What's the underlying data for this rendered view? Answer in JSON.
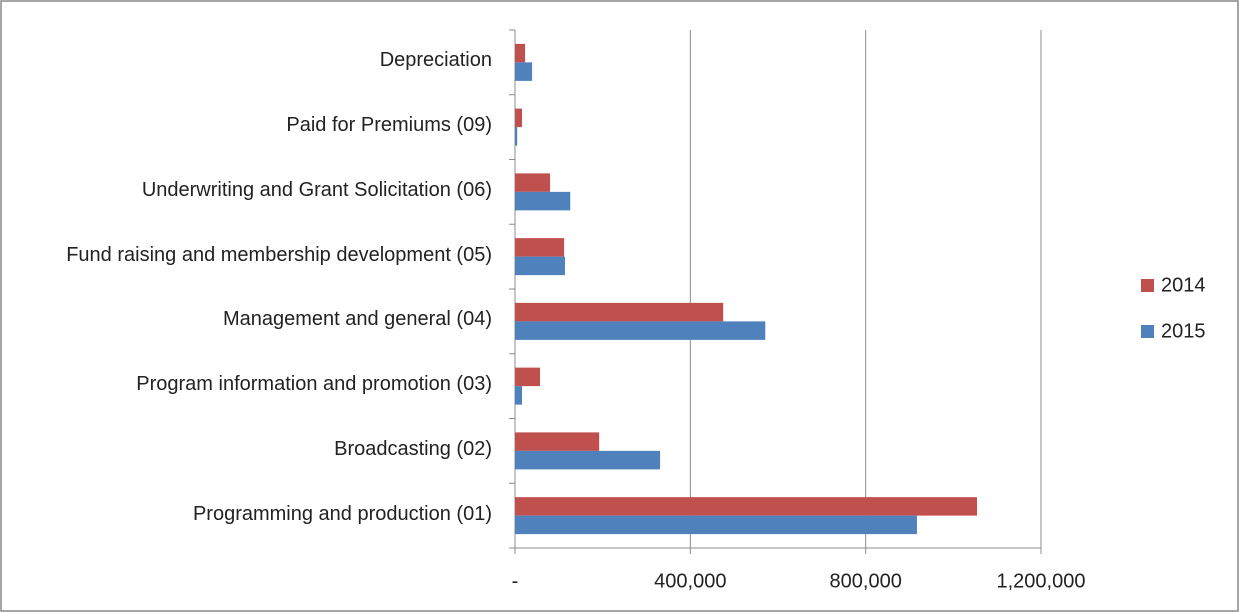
{
  "chart_data": {
    "type": "bar",
    "orientation": "horizontal",
    "categories": [
      "Programming and production (01)",
      "Broadcasting (02)",
      "Program information and promotion (03)",
      "Management and general (04)",
      "Fund raising and membership development (05)",
      "Underwriting and Grant Solicitation (06)",
      "Paid for Premiums (09)",
      "Depreciation"
    ],
    "series": [
      {
        "name": "2014",
        "color": "#c0504d",
        "values": [
          1054000,
          192000,
          57000,
          475000,
          112000,
          80000,
          16000,
          23000
        ]
      },
      {
        "name": "2015",
        "color": "#4f81bd",
        "values": [
          917000,
          331000,
          16000,
          571000,
          114000,
          126000,
          5000,
          39000
        ]
      }
    ],
    "xlim": [
      0,
      1200000
    ],
    "xticks": [
      {
        "value": 0,
        "label": "-"
      },
      {
        "value": 400000,
        "label": "400,000"
      },
      {
        "value": 800000,
        "label": "800,000"
      },
      {
        "value": 1200000,
        "label": "1,200,000"
      }
    ],
    "grid": true,
    "legend": "right"
  }
}
